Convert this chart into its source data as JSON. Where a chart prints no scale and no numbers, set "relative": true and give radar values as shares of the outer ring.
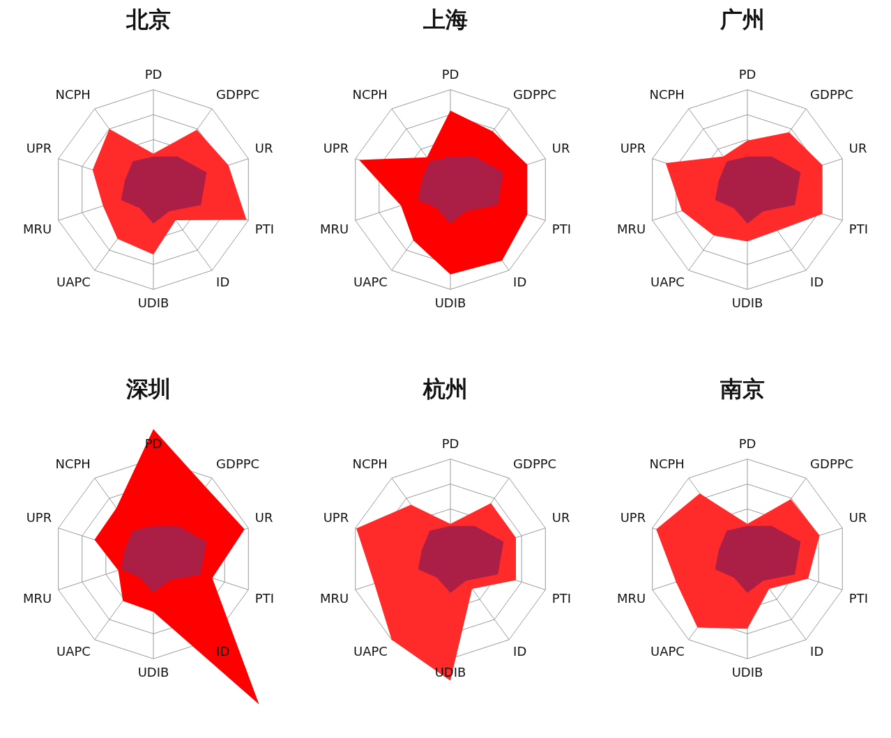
{
  "chart_data": [
    {
      "type": "radar",
      "title": "北京",
      "relative": true,
      "categories": [
        "PD",
        "GDPPC",
        "UR",
        "PTI",
        "ID",
        "UDIB",
        "UAPC",
        "MRU",
        "UPR",
        "NCPH"
      ],
      "series": [
        {
          "color": "#ff2a2a",
          "values": [
            0.36,
            0.74,
            0.79,
            0.98,
            0.38,
            0.65,
            0.61,
            0.53,
            0.64,
            0.75
          ]
        },
        {
          "color": "#ab1f47",
          "values": [
            0.33,
            0.41,
            0.56,
            0.5,
            0.27,
            0.34,
            0.23,
            0.34,
            0.3,
            0.35
          ]
        }
      ]
    },
    {
      "type": "radar",
      "title": "上海",
      "relative": true,
      "categories": [
        "PD",
        "GDPPC",
        "UR",
        "PTI",
        "ID",
        "UDIB",
        "UAPC",
        "MRU",
        "UPR",
        "NCPH"
      ],
      "series": [
        {
          "color": "#ff0000",
          "values": [
            0.79,
            0.72,
            0.81,
            0.81,
            0.88,
            0.85,
            0.63,
            0.52,
            0.96,
            0.4
          ]
        },
        {
          "color": "#ab1f47",
          "values": [
            0.33,
            0.41,
            0.56,
            0.5,
            0.27,
            0.34,
            0.23,
            0.34,
            0.3,
            0.35
          ]
        }
      ]
    },
    {
      "type": "radar",
      "title": "广州",
      "relative": true,
      "categories": [
        "PD",
        "GDPPC",
        "UR",
        "PTI",
        "ID",
        "UDIB",
        "UAPC",
        "MRU",
        "UPR",
        "NCPH"
      ],
      "series": [
        {
          "color": "#ff2a2a",
          "values": [
            0.49,
            0.71,
            0.79,
            0.79,
            0.51,
            0.52,
            0.57,
            0.69,
            0.86,
            0.41
          ]
        },
        {
          "color": "#ab1f47",
          "values": [
            0.33,
            0.41,
            0.56,
            0.5,
            0.27,
            0.34,
            0.23,
            0.34,
            0.3,
            0.35
          ]
        }
      ]
    },
    {
      "type": "radar",
      "title": "深圳",
      "relative": true,
      "categories": [
        "PD",
        "GDPPC",
        "UR",
        "PTI",
        "ID",
        "UDIB",
        "UAPC",
        "MRU",
        "UPR",
        "NCPH"
      ],
      "series": [
        {
          "color": "#ff0000",
          "values": [
            1.3,
            0.89,
            0.96,
            0.62,
            1.8,
            0.53,
            0.52,
            0.37,
            0.62,
            0.63
          ]
        },
        {
          "color": "#ab1f47",
          "values": [
            0.33,
            0.41,
            0.56,
            0.5,
            0.27,
            0.34,
            0.23,
            0.34,
            0.3,
            0.35
          ]
        }
      ]
    },
    {
      "type": "radar",
      "title": "杭州",
      "relative": true,
      "categories": [
        "PD",
        "GDPPC",
        "UR",
        "PTI",
        "ID",
        "UDIB",
        "UAPC",
        "MRU",
        "UPR",
        "NCPH"
      ],
      "series": [
        {
          "color": "#ff2a2a",
          "values": [
            0.35,
            0.69,
            0.69,
            0.69,
            0.37,
            1.22,
            1.0,
            0.8,
            0.99,
            0.67
          ]
        },
        {
          "color": "#ab1f47",
          "values": [
            0.33,
            0.41,
            0.56,
            0.5,
            0.27,
            0.34,
            0.23,
            0.34,
            0.3,
            0.35
          ]
        }
      ]
    },
    {
      "type": "radar",
      "title": "南京",
      "relative": true,
      "categories": [
        "PD",
        "GDPPC",
        "UR",
        "PTI",
        "ID",
        "UDIB",
        "UAPC",
        "MRU",
        "UPR",
        "NCPH"
      ],
      "series": [
        {
          "color": "#ff2a2a",
          "values": [
            0.35,
            0.74,
            0.76,
            0.64,
            0.37,
            0.7,
            0.85,
            0.75,
            0.96,
            0.81
          ]
        },
        {
          "color": "#ab1f47",
          "values": [
            0.33,
            0.41,
            0.56,
            0.5,
            0.27,
            0.34,
            0.23,
            0.34,
            0.3,
            0.35
          ]
        }
      ]
    }
  ]
}
